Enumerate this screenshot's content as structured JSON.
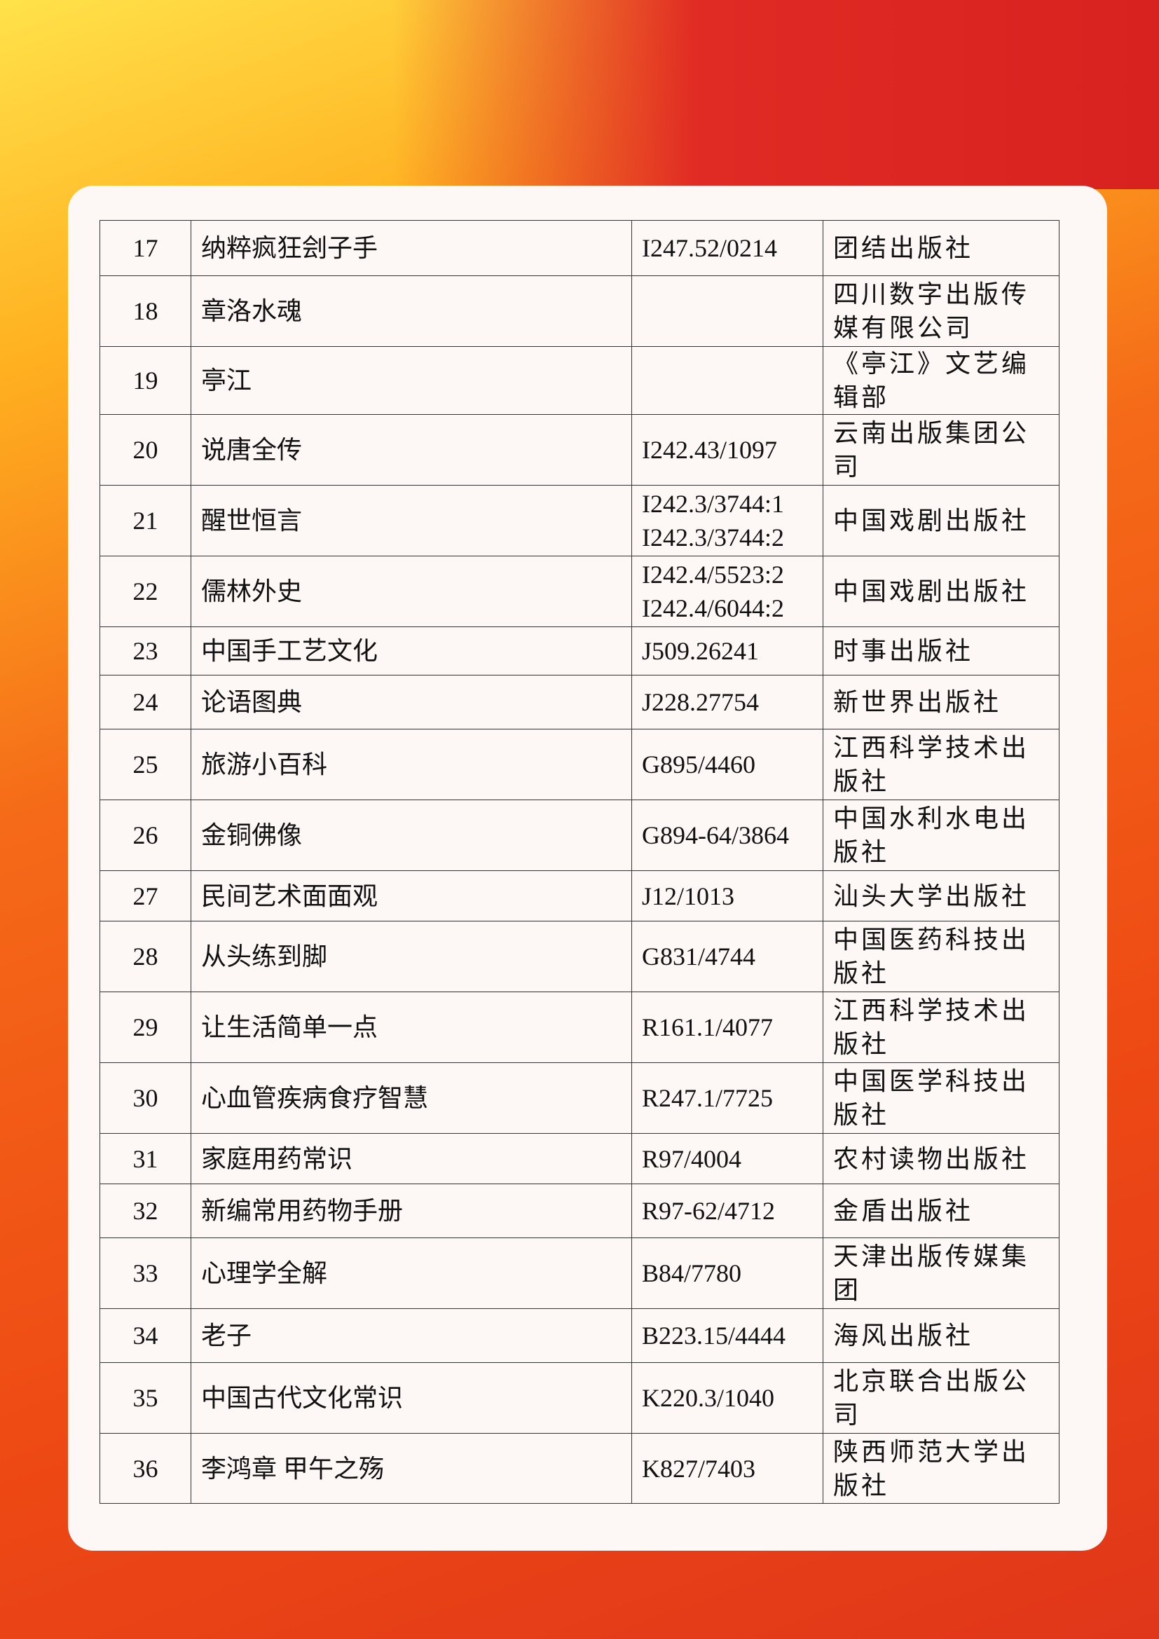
{
  "table": {
    "rows": [
      {
        "no": "17",
        "title": "纳粹疯狂刽子手",
        "call_number": [
          "I247.52/0214"
        ],
        "publisher": "团结出版社"
      },
      {
        "no": "18",
        "title": "章洛水魂",
        "publisher": "四川数字出版传媒有限公司"
      },
      {
        "no": "19",
        "title": "亭江",
        "publisher": "《亭江》文艺编辑部"
      },
      {
        "no": "20",
        "title": "说唐全传",
        "call_number": [
          "I242.43/1097"
        ],
        "publisher": "云南出版集团公司"
      },
      {
        "no": "21",
        "title": "醒世恒言",
        "call_number": [
          "I242.3/3744:1",
          "I242.3/3744:2"
        ],
        "publisher": "中国戏剧出版社"
      },
      {
        "no": "22",
        "title": "儒林外史",
        "call_number": [
          "I242.4/5523:2",
          "I242.4/6044:2"
        ],
        "publisher": "中国戏剧出版社"
      },
      {
        "no": "23",
        "title": "中国手工艺文化",
        "call_number": [
          "J509.26241"
        ],
        "publisher": "时事出版社"
      },
      {
        "no": "24",
        "title": "论语图典",
        "call_number": [
          "J228.27754"
        ],
        "publisher": "新世界出版社"
      },
      {
        "no": "25",
        "title": "旅游小百科",
        "call_number": [
          "G895/4460"
        ],
        "publisher": "江西科学技术出版社"
      },
      {
        "no": "26",
        "title": "金铜佛像",
        "call_number": [
          "G894-64/3864"
        ],
        "publisher": "中国水利水电出版社"
      },
      {
        "no": "27",
        "title": "民间艺术面面观",
        "call_number": [
          "J12/1013"
        ],
        "publisher": "汕头大学出版社"
      },
      {
        "no": "28",
        "title": "从头练到脚",
        "call_number": [
          "G831/4744"
        ],
        "publisher": "中国医药科技出版社"
      },
      {
        "no": "29",
        "title": "让生活简单一点",
        "call_number": [
          "R161.1/4077"
        ],
        "publisher": "江西科学技术出版社"
      },
      {
        "no": "30",
        "title": "心血管疾病食疗智慧",
        "call_number": [
          "R247.1/7725"
        ],
        "publisher": "中国医学科技出版社"
      },
      {
        "no": "31",
        "title": "家庭用药常识",
        "call_number": [
          "R97/4004"
        ],
        "publisher": "农村读物出版社"
      },
      {
        "no": "32",
        "title": "新编常用药物手册",
        "call_number": [
          "R97-62/4712"
        ],
        "publisher": "金盾出版社"
      },
      {
        "no": "33",
        "title": "心理学全解",
        "call_number": [
          "B84/7780"
        ],
        "publisher": "天津出版传媒集团"
      },
      {
        "no": "34",
        "title": "老子",
        "call_number": [
          "B223.15/4444"
        ],
        "publisher": "海风出版社"
      },
      {
        "no": "35",
        "title": "中国古代文化常识",
        "call_number": [
          "K220.3/1040"
        ],
        "publisher": "北京联合出版公司"
      },
      {
        "no": "36",
        "title": "李鸿章  甲午之殇",
        "call_number": [
          "K827/7403"
        ],
        "publisher": "陕西师范大学出版社"
      }
    ]
  }
}
